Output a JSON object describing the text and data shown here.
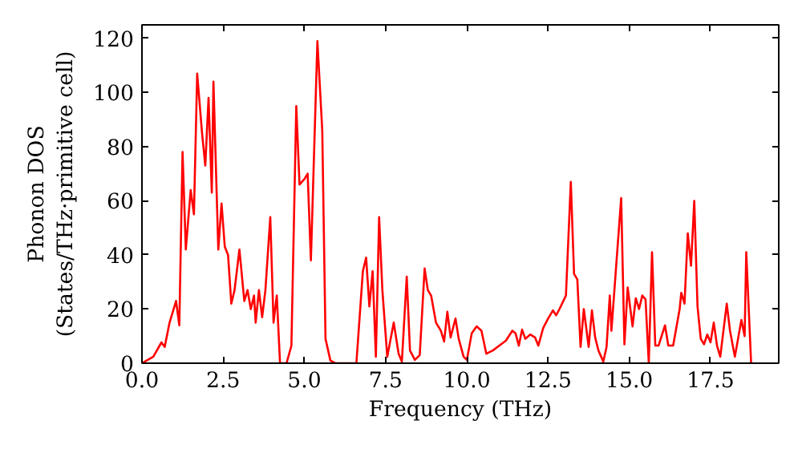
{
  "chart_data": {
    "type": "line",
    "xlabel": "Frequency (THz)",
    "ylabel": "Phonon DOS\n(States/THz·primitive cell)",
    "xlim": [
      0,
      19.6
    ],
    "ylim": [
      0,
      125
    ],
    "xticks": [
      {
        "value": 0,
        "label": "0.0"
      },
      {
        "value": 2.5,
        "label": "2.5"
      },
      {
        "value": 5,
        "label": "5.0"
      },
      {
        "value": 7.5,
        "label": "7.5"
      },
      {
        "value": 10,
        "label": "10.0"
      },
      {
        "value": 12.5,
        "label": "12.5"
      },
      {
        "value": 15,
        "label": "15.0"
      },
      {
        "value": 17.5,
        "label": "17.5"
      }
    ],
    "yticks": [
      0,
      20,
      40,
      60,
      80,
      100,
      120
    ],
    "grid": false,
    "marker": "none",
    "line_style": "solid",
    "series": [
      {
        "color": "#ff0000",
        "x": [
          0,
          0.35,
          0.6,
          0.7,
          0.85,
          1.0,
          1.05,
          1.15,
          1.25,
          1.35,
          1.5,
          1.6,
          1.7,
          1.85,
          1.95,
          2.05,
          2.15,
          2.2,
          2.35,
          2.45,
          2.55,
          2.65,
          2.75,
          2.85,
          3.0,
          3.15,
          3.25,
          3.35,
          3.45,
          3.5,
          3.6,
          3.7,
          3.8,
          3.95,
          4.05,
          4.15,
          4.25,
          4.45,
          4.6,
          4.75,
          4.85,
          5.0,
          5.1,
          5.2,
          5.4,
          5.55,
          5.65,
          5.8,
          5.95,
          6.6,
          6.8,
          6.9,
          7.0,
          7.1,
          7.2,
          7.3,
          7.4,
          7.55,
          7.75,
          7.9,
          8.0,
          8.15,
          8.25,
          8.4,
          8.55,
          8.7,
          8.8,
          8.9,
          9.05,
          9.2,
          9.3,
          9.4,
          9.5,
          9.65,
          9.75,
          9.9,
          10.0,
          10.15,
          10.3,
          10.45,
          10.6,
          10.8,
          11.0,
          11.2,
          11.4,
          11.5,
          11.6,
          11.7,
          11.8,
          11.95,
          12.1,
          12.2,
          12.35,
          12.5,
          12.65,
          12.75,
          12.85,
          13.05,
          13.2,
          13.3,
          13.4,
          13.5,
          13.6,
          13.75,
          13.85,
          13.95,
          14.05,
          14.2,
          14.3,
          14.4,
          14.45,
          14.75,
          14.85,
          14.95,
          15.1,
          15.2,
          15.3,
          15.4,
          15.5,
          15.6,
          15.7,
          15.8,
          15.9,
          16.1,
          16.2,
          16.35,
          16.55,
          16.6,
          16.7,
          16.8,
          16.9,
          17.0,
          17.1,
          17.2,
          17.3,
          17.4,
          17.5,
          17.6,
          17.7,
          17.8,
          18.0,
          18.1,
          18.25,
          18.45,
          18.55,
          18.6,
          18.75
        ],
        "values": [
          0,
          2.4,
          7.7,
          6,
          15,
          21,
          23,
          14,
          78,
          42,
          64,
          55,
          107,
          85,
          73,
          98,
          63,
          104,
          42,
          59,
          43,
          40,
          22,
          27,
          42,
          23,
          27,
          20,
          25,
          15,
          27,
          17,
          27,
          54,
          15,
          25,
          0,
          0,
          6.5,
          95,
          66,
          68,
          70,
          38,
          119,
          86,
          9,
          1,
          0,
          0,
          34,
          39,
          21,
          34,
          2.4,
          54,
          27,
          2.4,
          15,
          3.5,
          0.6,
          32,
          4.7,
          1.2,
          3,
          35,
          27,
          25,
          15,
          12,
          8,
          19,
          9.5,
          16.5,
          9,
          2.4,
          1.2,
          11,
          13.6,
          12,
          3.5,
          4.7,
          6.5,
          8.3,
          12,
          11,
          6.5,
          12.4,
          9,
          10.6,
          9.5,
          6.5,
          13,
          16.5,
          19.5,
          17.7,
          20,
          25,
          67,
          33,
          31,
          6,
          20,
          6,
          19.5,
          9.5,
          4.7,
          0.6,
          6,
          25,
          12,
          61,
          7,
          28,
          13.6,
          24,
          20,
          25,
          23.6,
          0,
          41,
          6.5,
          6.5,
          14,
          6.5,
          6.5,
          20,
          26,
          22,
          48,
          36,
          60,
          21,
          9,
          7,
          10.6,
          7.7,
          15,
          6.5,
          2.4,
          22,
          12,
          2.4,
          16,
          10,
          41,
          0
        ]
      }
    ]
  }
}
